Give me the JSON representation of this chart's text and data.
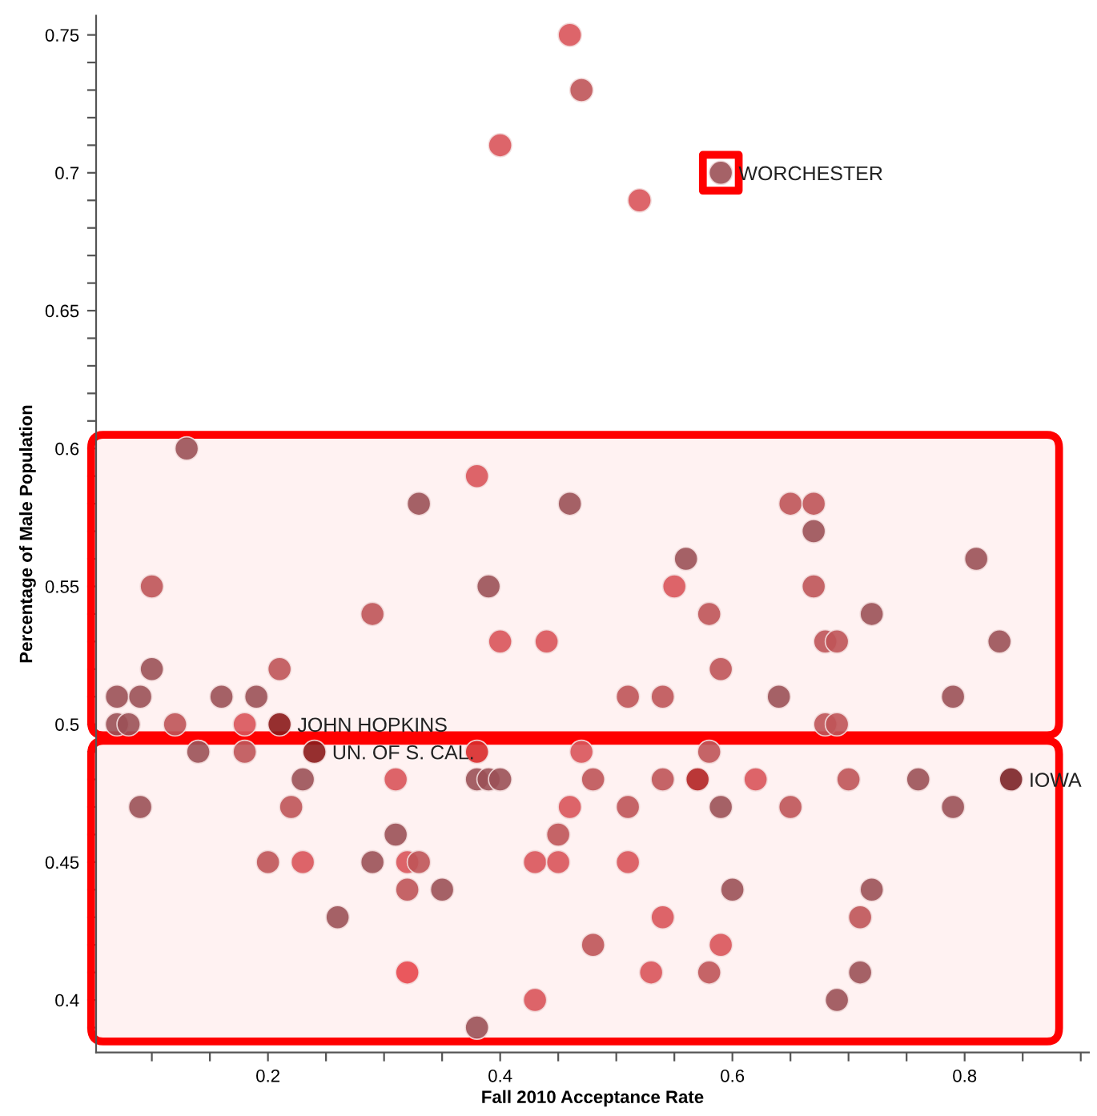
{
  "chart_data": {
    "type": "scatter",
    "xlabel": "Fall 2010 Acceptance Rate",
    "ylabel": "Percentage of Male Population",
    "xlim": [
      0.052,
      0.907
    ],
    "ylim": [
      0.381,
      0.757
    ],
    "xticks": [
      {
        "value": 0.1,
        "label": null
      },
      {
        "value": 0.15,
        "label": null
      },
      0.2,
      {
        "value": 0.25,
        "label": null
      },
      {
        "value": 0.3,
        "label": null
      },
      {
        "value": 0.35,
        "label": null
      },
      0.4,
      {
        "value": 0.45,
        "label": null
      },
      {
        "value": 0.5,
        "label": null
      },
      {
        "value": 0.55,
        "label": null
      },
      0.6,
      {
        "value": 0.65,
        "label": null
      },
      {
        "value": 0.7,
        "label": null
      },
      {
        "value": 0.75,
        "label": null
      },
      0.8,
      {
        "value": 0.85,
        "label": null
      },
      {
        "value": 0.9,
        "label": null
      }
    ],
    "yticks": [
      {
        "value": 0.39,
        "label": null
      },
      0.4,
      {
        "value": 0.41,
        "label": null
      },
      {
        "value": 0.42,
        "label": null
      },
      {
        "value": 0.43,
        "label": null
      },
      {
        "value": 0.44,
        "label": null
      },
      0.45,
      {
        "value": 0.46,
        "label": null
      },
      {
        "value": 0.47,
        "label": null
      },
      {
        "value": 0.48,
        "label": null
      },
      {
        "value": 0.49,
        "label": null
      },
      0.5,
      {
        "value": 0.51,
        "label": null
      },
      {
        "value": 0.52,
        "label": null
      },
      {
        "value": 0.53,
        "label": null
      },
      {
        "value": 0.54,
        "label": null
      },
      0.55,
      {
        "value": 0.56,
        "label": null
      },
      {
        "value": 0.57,
        "label": null
      },
      {
        "value": 0.58,
        "label": null
      },
      {
        "value": 0.59,
        "label": null
      },
      0.6,
      {
        "value": 0.61,
        "label": null
      },
      {
        "value": 0.62,
        "label": null
      },
      {
        "value": 0.63,
        "label": null
      },
      {
        "value": 0.64,
        "label": null
      },
      0.65,
      {
        "value": 0.66,
        "label": null
      },
      {
        "value": 0.67,
        "label": null
      },
      {
        "value": 0.68,
        "label": null
      },
      {
        "value": 0.69,
        "label": null
      },
      0.7,
      {
        "value": 0.71,
        "label": null
      },
      {
        "value": 0.72,
        "label": null
      },
      {
        "value": 0.73,
        "label": null
      },
      {
        "value": 0.74,
        "label": null
      },
      0.75
    ],
    "grid": false,
    "marker": "circle",
    "series": [
      {
        "x": [
          0.46,
          0.47,
          0.4,
          0.52,
          0.59,
          0.13,
          0.38,
          0.33,
          0.46,
          0.1,
          0.39,
          0.29,
          0.4,
          0.44,
          0.1,
          0.21,
          0.07,
          0.09,
          0.16,
          0.19,
          0.07,
          0.08,
          0.12,
          0.18,
          0.21,
          0.65,
          0.67,
          0.67,
          0.56,
          0.81,
          0.55,
          0.67,
          0.58,
          0.72,
          0.59,
          0.68,
          0.69,
          0.83,
          0.51,
          0.54,
          0.64,
          0.79,
          0.68,
          0.69,
          0.14,
          0.18,
          0.24,
          0.38,
          0.47,
          0.58,
          0.23,
          0.31,
          0.38,
          0.39,
          0.4,
          0.48,
          0.54,
          0.57,
          0.62,
          0.7,
          0.76,
          0.84,
          0.09,
          0.22,
          0.46,
          0.51,
          0.59,
          0.65,
          0.79,
          0.31,
          0.45,
          0.2,
          0.23,
          0.29,
          0.32,
          0.33,
          0.43,
          0.45,
          0.51,
          0.32,
          0.35,
          0.6,
          0.72,
          0.26,
          0.54,
          0.71,
          0.48,
          0.59,
          0.32,
          0.53,
          0.58,
          0.71,
          0.43,
          0.69,
          0.38
        ],
        "values": [
          0.75,
          0.73,
          0.71,
          0.69,
          0.7,
          0.6,
          0.59,
          0.58,
          0.58,
          0.55,
          0.55,
          0.54,
          0.53,
          0.53,
          0.52,
          0.52,
          0.51,
          0.51,
          0.51,
          0.51,
          0.5,
          0.5,
          0.5,
          0.5,
          0.5,
          0.58,
          0.58,
          0.57,
          0.56,
          0.56,
          0.55,
          0.55,
          0.54,
          0.54,
          0.52,
          0.53,
          0.53,
          0.53,
          0.51,
          0.51,
          0.51,
          0.51,
          0.5,
          0.5,
          0.49,
          0.49,
          0.49,
          0.49,
          0.49,
          0.49,
          0.48,
          0.48,
          0.48,
          0.48,
          0.48,
          0.48,
          0.48,
          0.48,
          0.48,
          0.48,
          0.48,
          0.48,
          0.47,
          0.47,
          0.47,
          0.47,
          0.47,
          0.47,
          0.47,
          0.46,
          0.46,
          0.45,
          0.45,
          0.45,
          0.45,
          0.45,
          0.45,
          0.45,
          0.45,
          0.44,
          0.44,
          0.44,
          0.44,
          0.43,
          0.43,
          0.43,
          0.42,
          0.42,
          0.41,
          0.41,
          0.41,
          0.41,
          0.4,
          0.4,
          0.39
        ],
        "colors": [
          "#d9545a",
          "#bf5458",
          "#d9545a",
          "#d9545a",
          "#9b5157",
          "#9b5157",
          "#d9545a",
          "#9b5157",
          "#9b5157",
          "#bf5458",
          "#9b5157",
          "#bf5458",
          "#d9545a",
          "#d9545a",
          "#9b5157",
          "#bf5458",
          "#9b5157",
          "#9b5157",
          "#9b5157",
          "#9b5157",
          "#9b5157",
          "#9b5157",
          "#bf5458",
          "#d9545a",
          "#8b1a1a",
          "#bf5458",
          "#bf5458",
          "#9b5157",
          "#9b5157",
          "#9b5157",
          "#d9545a",
          "#bf5458",
          "#bf5458",
          "#9b5157",
          "#bf5458",
          "#bf5458",
          "#bf5458",
          "#9b5157",
          "#bf5458",
          "#bf5458",
          "#9b5157",
          "#9b5157",
          "#bf5458",
          "#bf5458",
          "#9b5157",
          "#bf5458",
          "#8b1a1a",
          "#d92a2a",
          "#d9545a",
          "#bf5458",
          "#9b5157",
          "#d9545a",
          "#9b5157",
          "#9b5157",
          "#9b5157",
          "#bf5458",
          "#bf5458",
          "#b22222",
          "#d9545a",
          "#bf5458",
          "#9b5157",
          "#7b2226",
          "#9b5157",
          "#bf5458",
          "#d9545a",
          "#bf5458",
          "#9b5157",
          "#bf5458",
          "#9b5157",
          "#9b5157",
          "#bf5458",
          "#bf5458",
          "#d9545a",
          "#9b5157",
          "#d9545a",
          "#bf5458",
          "#d9545a",
          "#d9545a",
          "#d9545a",
          "#bf5458",
          "#9b5157",
          "#9b5157",
          "#9b5157",
          "#9b5157",
          "#d9545a",
          "#bf5458",
          "#bf5458",
          "#d9545a",
          "#e8474d",
          "#d9545a",
          "#bf5458",
          "#9b5157",
          "#d9545a",
          "#9b5157",
          "#9b5157"
        ]
      },
      {
        "x": [
          0.59
        ],
        "values": [
          0.7
        ],
        "marker": "square",
        "color": "#ff0000"
      }
    ],
    "bands": [
      {
        "axis": "y",
        "from": 0.496,
        "to": 0.605,
        "color": "#ff0000"
      },
      {
        "axis": "y",
        "from": 0.385,
        "to": 0.494,
        "color": "#ff0000"
      }
    ],
    "annotations": [
      {
        "text": "WORCHESTER",
        "x": 0.59,
        "y": 0.7
      },
      {
        "text": "JOHN HOPKINS",
        "x": 0.21,
        "y": 0.5
      },
      {
        "text": "UN. OF S. CAL.",
        "x": 0.24,
        "y": 0.49
      },
      {
        "text": "IOWA",
        "x": 0.84,
        "y": 0.48
      }
    ]
  }
}
